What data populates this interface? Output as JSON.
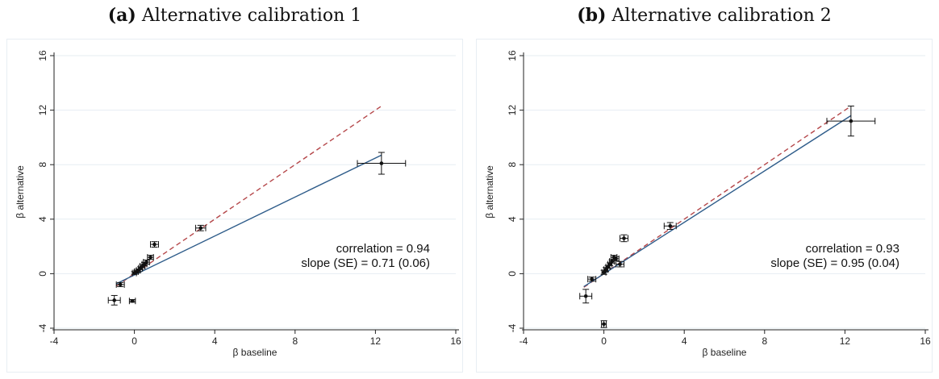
{
  "chart_data": [
    {
      "type": "scatter",
      "panel_label": "(a)",
      "title": "Alternative calibration 1",
      "xlabel": "β baseline",
      "ylabel": "β alternative",
      "xlim": [
        -4,
        16
      ],
      "ylim": [
        -4,
        16
      ],
      "xticks": [
        -4,
        0,
        4,
        8,
        12,
        16
      ],
      "yticks": [
        -4,
        0,
        4,
        8,
        12,
        16
      ],
      "grid": "horizontal",
      "annotations": [
        "correlation = 0.94",
        "slope (SE) = 0.71 (0.06)"
      ],
      "points": [
        {
          "x": 12.3,
          "y": 8.1,
          "xerr": 1.2,
          "yerr": 0.8
        },
        {
          "x": 3.3,
          "y": 3.35,
          "xerr": 0.25,
          "yerr": 0.2
        },
        {
          "x": 1.0,
          "y": 2.15,
          "xerr": 0.2,
          "yerr": 0.2
        },
        {
          "x": 0.8,
          "y": 1.2,
          "xerr": 0.15,
          "yerr": 0.15
        },
        {
          "x": 0.6,
          "y": 0.85,
          "xerr": 0.15,
          "yerr": 0.15
        },
        {
          "x": 0.5,
          "y": 0.7,
          "xerr": 0.12,
          "yerr": 0.12
        },
        {
          "x": 0.4,
          "y": 0.55,
          "xerr": 0.12,
          "yerr": 0.12
        },
        {
          "x": 0.3,
          "y": 0.4,
          "xerr": 0.1,
          "yerr": 0.1
        },
        {
          "x": 0.2,
          "y": 0.25,
          "xerr": 0.1,
          "yerr": 0.1
        },
        {
          "x": 0.1,
          "y": 0.15,
          "xerr": 0.1,
          "yerr": 0.1
        },
        {
          "x": 0.0,
          "y": 0.05,
          "xerr": 0.1,
          "yerr": 0.1
        },
        {
          "x": -0.7,
          "y": -0.8,
          "xerr": 0.2,
          "yerr": 0.15
        },
        {
          "x": -1.0,
          "y": -1.95,
          "xerr": 0.3,
          "yerr": 0.35
        },
        {
          "x": -0.1,
          "y": -2.0,
          "xerr": 0.15,
          "yerr": 0.1
        }
      ],
      "fit_line": {
        "x": [
          -0.9,
          12.3
        ],
        "y": [
          -0.74,
          8.7
        ],
        "color": "#2e5c8a"
      },
      "reference_line": {
        "x": [
          -0.9,
          12.3
        ],
        "y": [
          -0.9,
          12.3
        ],
        "color": "#b5474a",
        "style": "dashed"
      }
    },
    {
      "type": "scatter",
      "panel_label": "(b)",
      "title": "Alternative calibration 2",
      "xlabel": "β baseline",
      "ylabel": "β alternative",
      "xlim": [
        -4,
        16
      ],
      "ylim": [
        -4,
        16
      ],
      "xticks": [
        -4,
        0,
        4,
        8,
        12,
        16
      ],
      "yticks": [
        -4,
        0,
        4,
        8,
        12,
        16
      ],
      "grid": "horizontal",
      "annotations": [
        "correlation = 0.93",
        "slope (SE) = 0.95 (0.04)"
      ],
      "points": [
        {
          "x": 12.3,
          "y": 11.2,
          "xerr": 1.2,
          "yerr": 1.1
        },
        {
          "x": 3.3,
          "y": 3.5,
          "xerr": 0.3,
          "yerr": 0.25
        },
        {
          "x": 1.0,
          "y": 2.6,
          "xerr": 0.2,
          "yerr": 0.25
        },
        {
          "x": 0.8,
          "y": 0.7,
          "xerr": 0.2,
          "yerr": 0.2
        },
        {
          "x": 0.6,
          "y": 1.1,
          "xerr": 0.15,
          "yerr": 0.15
        },
        {
          "x": 0.5,
          "y": 1.2,
          "xerr": 0.15,
          "yerr": 0.15
        },
        {
          "x": 0.4,
          "y": 0.9,
          "xerr": 0.12,
          "yerr": 0.12
        },
        {
          "x": 0.3,
          "y": 0.7,
          "xerr": 0.1,
          "yerr": 0.1
        },
        {
          "x": 0.2,
          "y": 0.5,
          "xerr": 0.1,
          "yerr": 0.1
        },
        {
          "x": 0.1,
          "y": 0.3,
          "xerr": 0.1,
          "yerr": 0.15
        },
        {
          "x": 0.0,
          "y": 0.1,
          "xerr": 0.1,
          "yerr": 0.15
        },
        {
          "x": -0.6,
          "y": -0.4,
          "xerr": 0.2,
          "yerr": 0.15
        },
        {
          "x": -0.9,
          "y": -1.65,
          "xerr": 0.3,
          "yerr": 0.5
        },
        {
          "x": 0.0,
          "y": -3.7,
          "xerr": 0.12,
          "yerr": 0.25
        }
      ],
      "fit_line": {
        "x": [
          -1.0,
          12.3
        ],
        "y": [
          -0.95,
          11.6
        ],
        "color": "#2e5c8a"
      },
      "reference_line": {
        "x": [
          -1.0,
          12.3
        ],
        "y": [
          -1.0,
          12.3
        ],
        "color": "#b5474a",
        "style": "dashed"
      }
    }
  ]
}
